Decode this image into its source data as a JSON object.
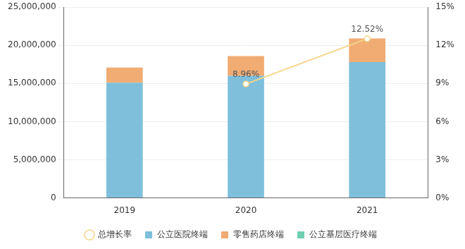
{
  "chart_data": {
    "type": "bar",
    "categories": [
      "2019",
      "2020",
      "2021"
    ],
    "stacked": true,
    "grid": true,
    "legend": "bottom",
    "ylim": [
      0,
      25000000
    ],
    "yticks": [
      0,
      {
        "value": 5000000,
        "label": "5,000,000"
      },
      {
        "value": 10000000,
        "label": "10,000,000"
      },
      {
        "value": 15000000,
        "label": "15,000,000"
      },
      {
        "value": 20000000,
        "label": "20,000,000"
      },
      {
        "value": 25000000,
        "label": "25,000,000"
      }
    ],
    "y2lim": [
      0,
      15
    ],
    "y2ticks": [
      {
        "value": 0,
        "label": "0%"
      },
      {
        "value": 3,
        "label": "3%"
      },
      {
        "value": 6,
        "label": "6%"
      },
      {
        "value": 9,
        "label": "9%"
      },
      {
        "value": 12,
        "label": "12%"
      },
      {
        "value": 15,
        "label": "15%"
      }
    ],
    "series": [
      {
        "name": "公立医院终端",
        "type": "bar",
        "color": "#7fbfdc",
        "values": [
          15100000,
          16000000,
          17800000
        ]
      },
      {
        "name": "零售药店终端",
        "type": "bar",
        "color": "#f0ac72",
        "values": [
          2000000,
          2600000,
          3100000
        ]
      },
      {
        "name": "公立基层医疗终端",
        "type": "bar",
        "color": "#6fcfb0",
        "values": [
          0,
          0,
          0
        ]
      },
      {
        "name": "总增长率",
        "type": "line",
        "axis": "y2",
        "color": "#f5d58a",
        "marker": "circle",
        "data_labels": true,
        "values": [
          null,
          8.96,
          12.52
        ],
        "value_labels": [
          null,
          "8.96%",
          "12.52%"
        ]
      }
    ]
  }
}
